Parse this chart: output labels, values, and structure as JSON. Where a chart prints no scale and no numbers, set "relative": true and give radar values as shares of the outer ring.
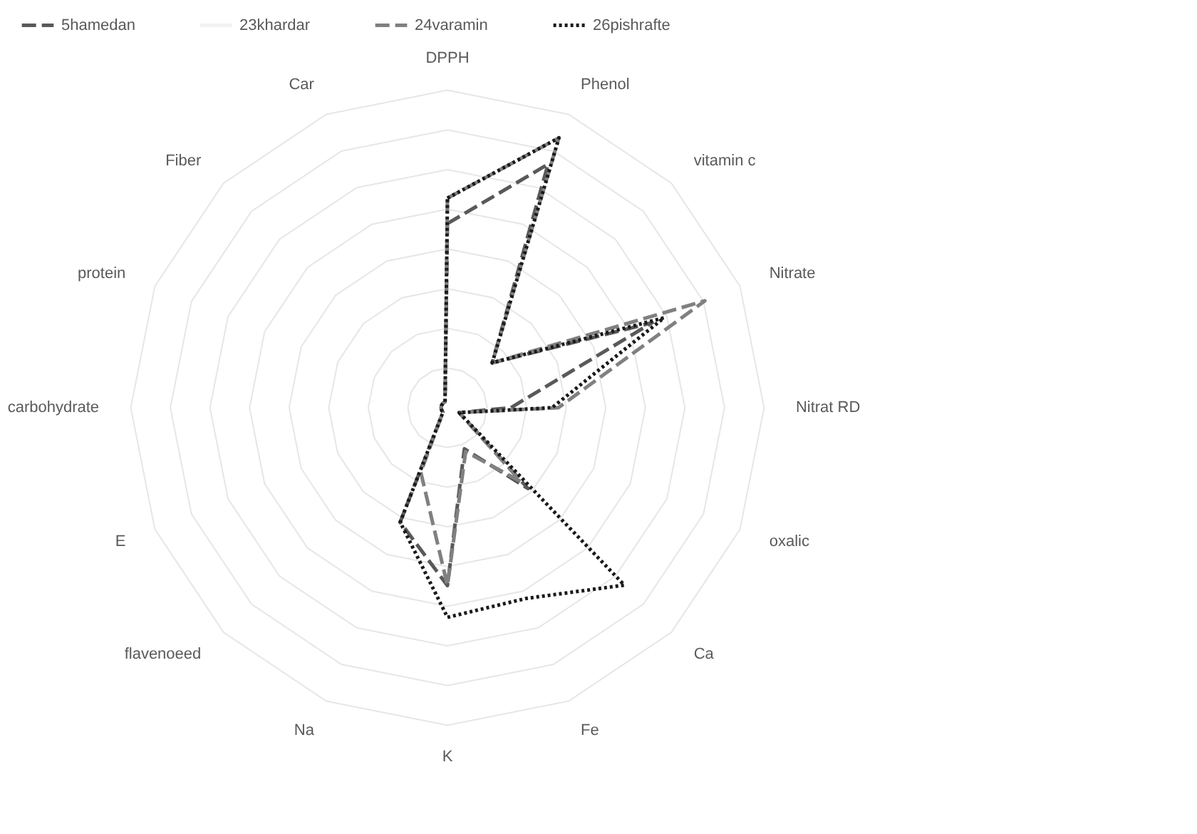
{
  "chart_data": {
    "type": "radar",
    "relative": true,
    "grid": true,
    "legend": "top",
    "categories": [
      "DPPH",
      "Phenol",
      "vitamin c",
      "Nitrate",
      "Nitrat RD",
      "oxalic",
      "Ca",
      "Fe",
      "K",
      "Na",
      "flavenoeed",
      "E",
      "carbohydrate",
      "protein",
      "Fiber",
      "Car"
    ],
    "series": [
      {
        "name": "5hamedan",
        "color": "#595959",
        "line_style": "dashed",
        "values": [
          0.58,
          0.83,
          0.2,
          0.7,
          0.2,
          0.04,
          0.36,
          0.14,
          0.56,
          0.39,
          0.02,
          0.02,
          0.02,
          0.02,
          0.02,
          0.02
        ]
      },
      {
        "name": "23khardar",
        "color": "#f2f2f2",
        "line_style": "solid",
        "values": [
          null,
          null,
          null,
          null,
          null,
          null,
          null,
          null,
          null,
          null,
          null,
          null,
          null,
          null,
          null,
          null
        ]
      },
      {
        "name": "24varamin",
        "color": "#808080",
        "line_style": "dashed",
        "values": [
          0.66,
          0.92,
          0.2,
          0.88,
          0.35,
          0.04,
          0.33,
          0.15,
          0.56,
          0.22,
          0.02,
          0.02,
          0.02,
          0.02,
          0.02,
          0.02
        ]
      },
      {
        "name": "26pishrafte",
        "color": "#1a1a1a",
        "line_style": "dotted",
        "values": [
          0.66,
          0.92,
          0.2,
          0.74,
          0.33,
          0.04,
          0.79,
          0.65,
          0.66,
          0.39,
          0.02,
          0.02,
          0.02,
          0.02,
          0.02,
          0.02
        ]
      }
    ]
  }
}
